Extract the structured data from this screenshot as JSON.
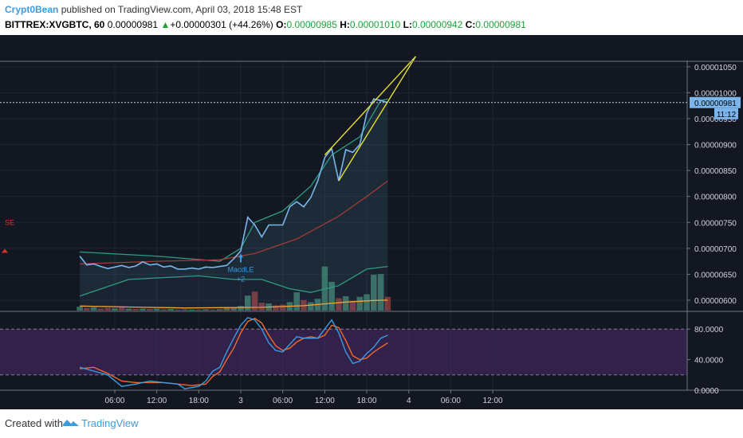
{
  "header": {
    "author": "Crypt0Bean",
    "published": " published on TradingView.com, April 03, 2018 15:48 EST",
    "symbol": "BITTREX:XVGBTC, 60",
    "last": "0.00000981",
    "change_arrow": "▲",
    "change": "+0.00000301 (+44.26%)",
    "o_label": "O:",
    "o_value": "0.00000985",
    "h_label": "H:",
    "h_value": "0.00001010",
    "l_label": "L:",
    "l_value": "0.00000942",
    "c_label": "C:",
    "c_value": "0.00000981"
  },
  "footer": {
    "created": "Created with",
    "brand": "TradingView"
  },
  "colors": {
    "background": "#131722",
    "price": "#7cb5ec",
    "sma": "#a33a3a",
    "bb": "#2e9c86",
    "trendline": "#e6e02e",
    "rsi_k": "#3d9be0",
    "rsi_d": "#f0692b",
    "rsi_band": "#4b2a6e",
    "vol_up": "#3c7a66",
    "vol_down": "#8a3b3b",
    "last_price_tag": "#7cb5ec"
  },
  "chart_data": {
    "type": "line",
    "symbol": "BITTREX:XVGBTC",
    "interval": "60",
    "ylim": [
      5.8e-06,
      1.062e-05
    ],
    "price_ticks": [
      "0.00000600",
      "0.00000650",
      "0.00000700",
      "0.00000750",
      "0.00000800",
      "0.00000850",
      "0.00000900",
      "0.00000950",
      "0.00001000",
      "0.00001050"
    ],
    "last_price_label": "0.00000981",
    "countdown_label": "11:12",
    "time_ticks": [
      {
        "t": -18,
        "label": "06:00"
      },
      {
        "t": -12,
        "label": "12:00"
      },
      {
        "t": -6,
        "label": "18:00"
      },
      {
        "t": 0,
        "label": "3"
      },
      {
        "t": 6,
        "label": "06:00"
      },
      {
        "t": 12,
        "label": "12:00"
      },
      {
        "t": 18,
        "label": "18:00"
      },
      {
        "t": 24,
        "label": "4"
      },
      {
        "t": 30,
        "label": "06:00"
      },
      {
        "t": 36,
        "label": "12:00"
      }
    ],
    "price": [
      {
        "t": -23,
        "v": 6.85e-06
      },
      {
        "t": -22,
        "v": 6.68e-06
      },
      {
        "t": -21,
        "v": 6.7e-06
      },
      {
        "t": -20,
        "v": 6.65e-06
      },
      {
        "t": -19,
        "v": 6.61e-06
      },
      {
        "t": -18,
        "v": 6.64e-06
      },
      {
        "t": -17,
        "v": 6.67e-06
      },
      {
        "t": -16,
        "v": 6.63e-06
      },
      {
        "t": -15,
        "v": 6.66e-06
      },
      {
        "t": -14,
        "v": 6.74e-06
      },
      {
        "t": -13,
        "v": 6.68e-06
      },
      {
        "t": -12,
        "v": 6.7e-06
      },
      {
        "t": -11,
        "v": 6.64e-06
      },
      {
        "t": -10,
        "v": 6.66e-06
      },
      {
        "t": -9,
        "v": 6.6e-06
      },
      {
        "t": -8,
        "v": 6.6e-06
      },
      {
        "t": -7,
        "v": 6.62e-06
      },
      {
        "t": -6,
        "v": 6.6e-06
      },
      {
        "t": -5,
        "v": 6.64e-06
      },
      {
        "t": -4,
        "v": 6.63e-06
      },
      {
        "t": -3,
        "v": 6.65e-06
      },
      {
        "t": -2,
        "v": 6.67e-06
      },
      {
        "t": -1,
        "v": 6.8e-06
      },
      {
        "t": 0,
        "v": 6.95e-06
      },
      {
        "t": 1,
        "v": 7.6e-06
      },
      {
        "t": 2,
        "v": 7.45e-06
      },
      {
        "t": 3,
        "v": 7.22e-06
      },
      {
        "t": 4,
        "v": 7.45e-06
      },
      {
        "t": 5,
        "v": 7.45e-06
      },
      {
        "t": 6,
        "v": 7.45e-06
      },
      {
        "t": 7,
        "v": 7.8e-06
      },
      {
        "t": 8,
        "v": 7.9e-06
      },
      {
        "t": 9,
        "v": 7.8e-06
      },
      {
        "t": 10,
        "v": 7.98e-06
      },
      {
        "t": 11,
        "v": 8.3e-06
      },
      {
        "t": 12,
        "v": 8.75e-06
      },
      {
        "t": 13,
        "v": 8.92e-06
      },
      {
        "t": 14,
        "v": 8.3e-06
      },
      {
        "t": 15,
        "v": 8.9e-06
      },
      {
        "t": 16,
        "v": 8.85e-06
      },
      {
        "t": 17,
        "v": 9e-06
      },
      {
        "t": 18,
        "v": 9.6e-06
      },
      {
        "t": 19,
        "v": 9.88e-06
      },
      {
        "t": 20,
        "v": 9.85e-06
      },
      {
        "t": 21,
        "v": 9.81e-06
      }
    ],
    "sma": [
      {
        "t": -23,
        "v": 6.7e-06
      },
      {
        "t": -12,
        "v": 6.75e-06
      },
      {
        "t": -3,
        "v": 6.78e-06
      },
      {
        "t": 2,
        "v": 6.9e-06
      },
      {
        "t": 8,
        "v": 7.18e-06
      },
      {
        "t": 14,
        "v": 7.62e-06
      },
      {
        "t": 18,
        "v": 8e-06
      },
      {
        "t": 21,
        "v": 8.3e-06
      }
    ],
    "bb_upper": [
      {
        "t": -23,
        "v": 6.93e-06
      },
      {
        "t": -12,
        "v": 6.85e-06
      },
      {
        "t": -3,
        "v": 6.75e-06
      },
      {
        "t": 0,
        "v": 7e-06
      },
      {
        "t": 2,
        "v": 7.5e-06
      },
      {
        "t": 6,
        "v": 7.72e-06
      },
      {
        "t": 10,
        "v": 8.2e-06
      },
      {
        "t": 13,
        "v": 8.8e-06
      },
      {
        "t": 17,
        "v": 9.15e-06
      },
      {
        "t": 20,
        "v": 9.85e-06
      },
      {
        "t": 21,
        "v": 9.88e-06
      }
    ],
    "bb_lower": [
      {
        "t": -23,
        "v": 6.08e-06
      },
      {
        "t": -16,
        "v": 6.4e-06
      },
      {
        "t": -6,
        "v": 6.47e-06
      },
      {
        "t": -1,
        "v": 6.4e-06
      },
      {
        "t": 3,
        "v": 6.4e-06
      },
      {
        "t": 7,
        "v": 6.22e-06
      },
      {
        "t": 10,
        "v": 6.15e-06
      },
      {
        "t": 14,
        "v": 6.28e-06
      },
      {
        "t": 18,
        "v": 6.6e-06
      },
      {
        "t": 21,
        "v": 6.65e-06
      }
    ],
    "volume_ma": [
      {
        "t": -23,
        "v": 1.4
      },
      {
        "t": -16,
        "v": 1.1
      },
      {
        "t": -8,
        "v": 0.8
      },
      {
        "t": -3,
        "v": 0.9
      },
      {
        "t": 3,
        "v": 1.0
      },
      {
        "t": 9,
        "v": 1.5
      },
      {
        "t": 15,
        "v": 2.6
      },
      {
        "t": 19,
        "v": 3.1
      },
      {
        "t": 21,
        "v": 3.2
      }
    ],
    "volume": [
      {
        "t": -23,
        "v": 1.2,
        "up": true
      },
      {
        "t": -22,
        "v": 0.8,
        "up": false
      },
      {
        "t": -21,
        "v": 1.0,
        "up": true
      },
      {
        "t": -20,
        "v": 0.6,
        "up": false
      },
      {
        "t": -19,
        "v": 0.8,
        "up": false
      },
      {
        "t": -18,
        "v": 0.7,
        "up": true
      },
      {
        "t": -17,
        "v": 0.9,
        "up": false
      },
      {
        "t": -16,
        "v": 0.6,
        "up": true
      },
      {
        "t": -15,
        "v": 0.5,
        "up": false
      },
      {
        "t": -14,
        "v": 0.6,
        "up": true
      },
      {
        "t": -13,
        "v": 0.5,
        "up": false
      },
      {
        "t": -12,
        "v": 0.6,
        "up": true
      },
      {
        "t": -11,
        "v": 0.4,
        "up": false
      },
      {
        "t": -10,
        "v": 0.5,
        "up": true
      },
      {
        "t": -9,
        "v": 0.3,
        "up": false
      },
      {
        "t": -8,
        "v": 0.4,
        "up": false
      },
      {
        "t": -7,
        "v": 0.3,
        "up": true
      },
      {
        "t": -6,
        "v": 0.3,
        "up": false
      },
      {
        "t": -5,
        "v": 0.4,
        "up": true
      },
      {
        "t": -4,
        "v": 0.3,
        "up": false
      },
      {
        "t": -3,
        "v": 0.4,
        "up": true
      },
      {
        "t": -2,
        "v": 0.8,
        "up": true
      },
      {
        "t": -1,
        "v": 1.0,
        "up": true
      },
      {
        "t": 0,
        "v": 1.4,
        "up": true
      },
      {
        "t": 1,
        "v": 4.6,
        "up": true
      },
      {
        "t": 2,
        "v": 5.8,
        "up": false
      },
      {
        "t": 3,
        "v": 2.4,
        "up": false
      },
      {
        "t": 4,
        "v": 2.2,
        "up": true
      },
      {
        "t": 5,
        "v": 1.6,
        "up": false
      },
      {
        "t": 6,
        "v": 1.8,
        "up": false
      },
      {
        "t": 7,
        "v": 2.6,
        "up": true
      },
      {
        "t": 8,
        "v": 5.6,
        "up": true
      },
      {
        "t": 9,
        "v": 3.2,
        "up": false
      },
      {
        "t": 10,
        "v": 2.6,
        "up": true
      },
      {
        "t": 11,
        "v": 3.6,
        "up": true
      },
      {
        "t": 12,
        "v": 13.5,
        "up": true
      },
      {
        "t": 13,
        "v": 8.8,
        "up": true
      },
      {
        "t": 14,
        "v": 3.8,
        "up": false
      },
      {
        "t": 15,
        "v": 4.4,
        "up": true
      },
      {
        "t": 16,
        "v": 3.0,
        "up": false
      },
      {
        "t": 17,
        "v": 4.2,
        "up": true
      },
      {
        "t": 18,
        "v": 5.0,
        "up": true
      },
      {
        "t": 19,
        "v": 11.0,
        "up": true
      },
      {
        "t": 20,
        "v": 11.2,
        "up": true
      },
      {
        "t": 21,
        "v": 4.2,
        "up": false
      }
    ],
    "rsi_ticks": [
      "0.0000",
      "40.0000",
      "80.0000"
    ],
    "rsi_ylim": [
      0,
      100
    ],
    "rsi_band": [
      20,
      80
    ],
    "rsi_k": [
      {
        "t": -23,
        "v": 30
      },
      {
        "t": -21,
        "v": 25
      },
      {
        "t": -19,
        "v": 20
      },
      {
        "t": -17,
        "v": 5
      },
      {
        "t": -15,
        "v": 8
      },
      {
        "t": -13,
        "v": 12
      },
      {
        "t": -11,
        "v": 10
      },
      {
        "t": -9,
        "v": 8
      },
      {
        "t": -8,
        "v": 2
      },
      {
        "t": -6,
        "v": 5
      },
      {
        "t": -5,
        "v": 12
      },
      {
        "t": -4,
        "v": 25
      },
      {
        "t": -3,
        "v": 30
      },
      {
        "t": -2,
        "v": 50
      },
      {
        "t": -1,
        "v": 68
      },
      {
        "t": 0,
        "v": 85
      },
      {
        "t": 1,
        "v": 95
      },
      {
        "t": 2,
        "v": 92
      },
      {
        "t": 3,
        "v": 80
      },
      {
        "t": 4,
        "v": 62
      },
      {
        "t": 5,
        "v": 52
      },
      {
        "t": 6,
        "v": 50
      },
      {
        "t": 7,
        "v": 60
      },
      {
        "t": 8,
        "v": 70
      },
      {
        "t": 9,
        "v": 68
      },
      {
        "t": 10,
        "v": 68
      },
      {
        "t": 11,
        "v": 68
      },
      {
        "t": 12,
        "v": 80
      },
      {
        "t": 13,
        "v": 92
      },
      {
        "t": 14,
        "v": 75
      },
      {
        "t": 15,
        "v": 50
      },
      {
        "t": 16,
        "v": 35
      },
      {
        "t": 17,
        "v": 38
      },
      {
        "t": 18,
        "v": 48
      },
      {
        "t": 19,
        "v": 56
      },
      {
        "t": 20,
        "v": 68
      },
      {
        "t": 21,
        "v": 72
      }
    ],
    "rsi_d": [
      {
        "t": -23,
        "v": 28
      },
      {
        "t": -21,
        "v": 30
      },
      {
        "t": -19,
        "v": 22
      },
      {
        "t": -17,
        "v": 12
      },
      {
        "t": -15,
        "v": 10
      },
      {
        "t": -13,
        "v": 10
      },
      {
        "t": -11,
        "v": 10
      },
      {
        "t": -9,
        "v": 8
      },
      {
        "t": -7,
        "v": 6
      },
      {
        "t": -5,
        "v": 8
      },
      {
        "t": -4,
        "v": 18
      },
      {
        "t": -3,
        "v": 24
      },
      {
        "t": -2,
        "v": 40
      },
      {
        "t": -1,
        "v": 55
      },
      {
        "t": 0,
        "v": 75
      },
      {
        "t": 1,
        "v": 90
      },
      {
        "t": 2,
        "v": 94
      },
      {
        "t": 3,
        "v": 88
      },
      {
        "t": 4,
        "v": 72
      },
      {
        "t": 5,
        "v": 58
      },
      {
        "t": 6,
        "v": 52
      },
      {
        "t": 7,
        "v": 55
      },
      {
        "t": 8,
        "v": 63
      },
      {
        "t": 9,
        "v": 68
      },
      {
        "t": 10,
        "v": 70
      },
      {
        "t": 11,
        "v": 68
      },
      {
        "t": 12,
        "v": 72
      },
      {
        "t": 13,
        "v": 85
      },
      {
        "t": 14,
        "v": 82
      },
      {
        "t": 15,
        "v": 65
      },
      {
        "t": 16,
        "v": 45
      },
      {
        "t": 17,
        "v": 40
      },
      {
        "t": 18,
        "v": 42
      },
      {
        "t": 19,
        "v": 50
      },
      {
        "t": 20,
        "v": 56
      },
      {
        "t": 21,
        "v": 62
      }
    ],
    "wedge_upper": [
      {
        "t": 12,
        "v": 8.8e-06
      },
      {
        "t": 25,
        "v": 1.07e-05
      }
    ],
    "wedge_lower": [
      {
        "t": 14,
        "v": 8.3e-06
      },
      {
        "t": 25,
        "v": 1.07e-05
      }
    ],
    "signal": {
      "t": 0,
      "label": "MacdLE",
      "sub": "+2"
    },
    "left_marker": {
      "label": "SE"
    }
  }
}
